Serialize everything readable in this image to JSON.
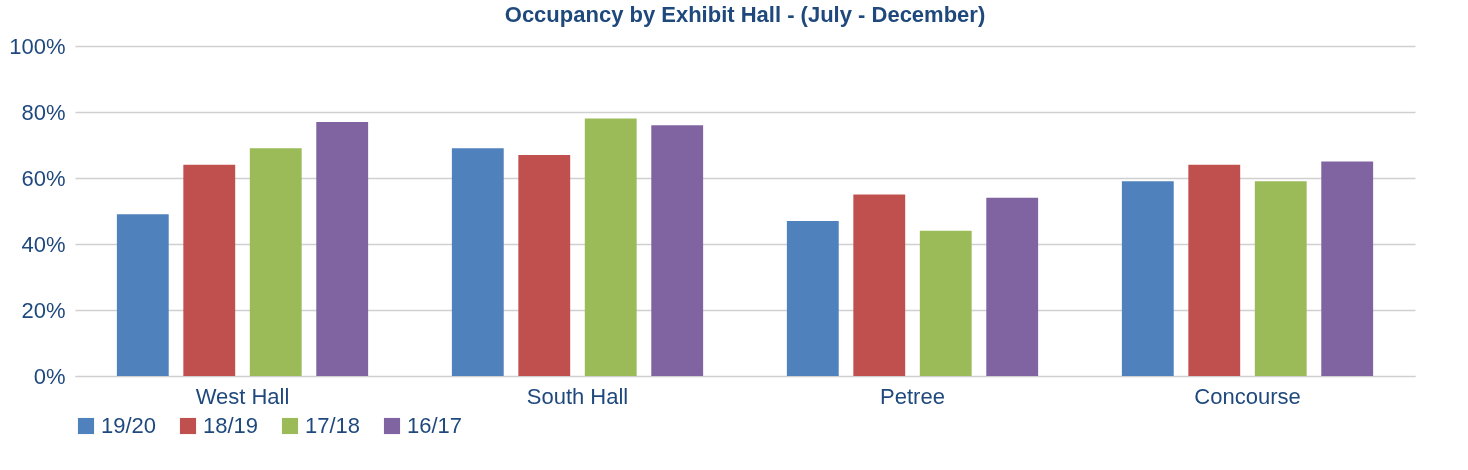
{
  "chart_data": {
    "type": "bar",
    "title": "Occupancy by Exhibit Hall - (July - December)",
    "categories": [
      "West Hall",
      "South Hall",
      "Petree",
      "Concourse"
    ],
    "series": [
      {
        "name": "19/20",
        "color": "#4f81bd",
        "values": [
          49,
          69,
          47,
          59
        ]
      },
      {
        "name": "18/19",
        "color": "#c0504d",
        "values": [
          64,
          67,
          55,
          64
        ]
      },
      {
        "name": "17/18",
        "color": "#9bbb59",
        "values": [
          69,
          78,
          44,
          59
        ]
      },
      {
        "name": "16/17",
        "color": "#8064a2",
        "values": [
          77,
          76,
          54,
          65
        ]
      }
    ],
    "ylim": [
      0,
      100
    ],
    "yticks": [
      {
        "value": 0,
        "label": "0%"
      },
      {
        "value": 20,
        "label": "20%"
      },
      {
        "value": 40,
        "label": "40%"
      },
      {
        "value": 60,
        "label": "60%"
      },
      {
        "value": 80,
        "label": "80%"
      },
      {
        "value": 100,
        "label": "100%"
      }
    ],
    "grid": "y",
    "legend": "bottom"
  }
}
